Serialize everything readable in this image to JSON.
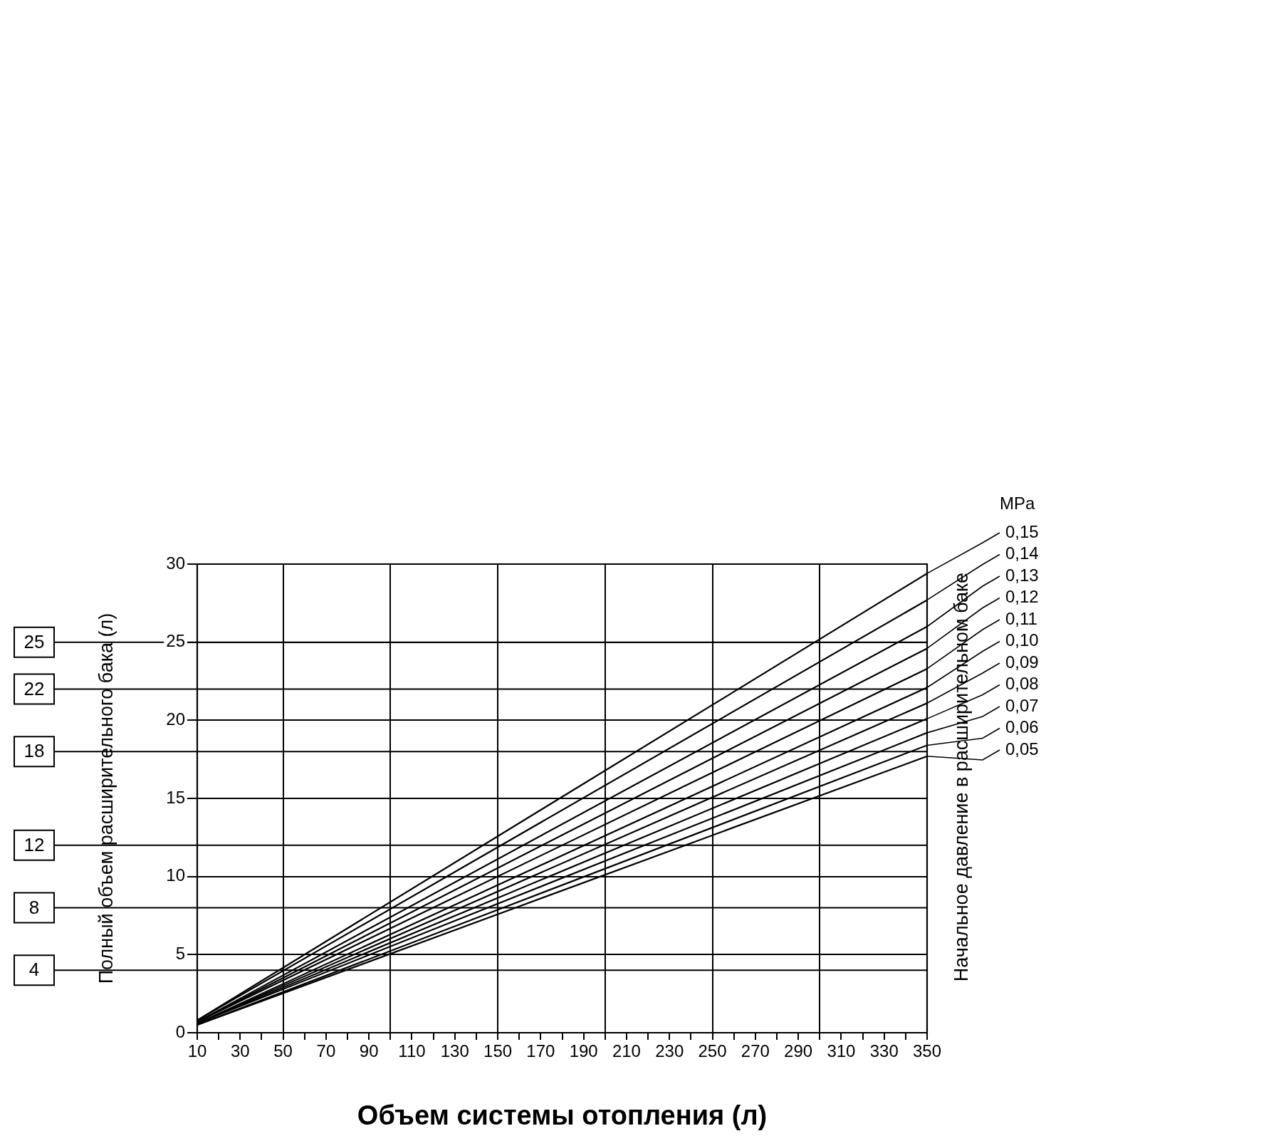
{
  "chart_data": {
    "type": "line",
    "xlabel": "Объем системы отопления (л)",
    "ylabel": "Полный объем расширительного бака (л)",
    "legend_title": "MPa",
    "legend": "right",
    "annotations": [
      "Начальное давление в расширительном баке"
    ],
    "x": [
      10,
      350
    ],
    "series": [
      {
        "name": "0,15",
        "color": "#000000",
        "values": [
          0.8,
          29.4
        ]
      },
      {
        "name": "0,14",
        "color": "#000000",
        "values": [
          0.8,
          27.7
        ]
      },
      {
        "name": "0,13",
        "color": "#000000",
        "values": [
          0.7,
          26.0
        ]
      },
      {
        "name": "0,12",
        "color": "#000000",
        "values": [
          0.7,
          24.6
        ]
      },
      {
        "name": "0,11",
        "color": "#000000",
        "values": [
          0.7,
          23.3
        ]
      },
      {
        "name": "0,10",
        "color": "#000000",
        "values": [
          0.6,
          22.1
        ]
      },
      {
        "name": "0,09",
        "color": "#000000",
        "values": [
          0.6,
          21.1
        ]
      },
      {
        "name": "0,08",
        "color": "#000000",
        "values": [
          0.6,
          20.1
        ]
      },
      {
        "name": "0,07",
        "color": "#000000",
        "values": [
          0.6,
          19.2
        ]
      },
      {
        "name": "0,06",
        "color": "#000000",
        "values": [
          0.5,
          18.4
        ]
      },
      {
        "name": "0,05",
        "color": "#000000",
        "values": [
          0.5,
          17.7
        ]
      }
    ],
    "xlim": [
      10,
      350
    ],
    "xticks": [
      10,
      {
        "value": 20,
        "label": null
      },
      30,
      {
        "value": 40,
        "label": null
      },
      50,
      {
        "value": 60,
        "label": null
      },
      70,
      {
        "value": 80,
        "label": null
      },
      90,
      {
        "value": 100,
        "label": null
      },
      110,
      {
        "value": 120,
        "label": null
      },
      130,
      {
        "value": 140,
        "label": null
      },
      150,
      {
        "value": 160,
        "label": null
      },
      170,
      {
        "value": 180,
        "label": null
      },
      190,
      {
        "value": 200,
        "label": null
      },
      210,
      {
        "value": 220,
        "label": null
      },
      230,
      {
        "value": 240,
        "label": null
      },
      250,
      {
        "value": 260,
        "label": null
      },
      270,
      {
        "value": 280,
        "label": null
      },
      290,
      {
        "value": 300,
        "label": null
      },
      310,
      {
        "value": 320,
        "label": null
      },
      330,
      {
        "value": 340,
        "label": null
      },
      350
    ],
    "ylim": [
      0,
      30
    ],
    "yticks": [
      0,
      5,
      10,
      15,
      20,
      25,
      30
    ],
    "ref_lines": [
      {
        "axis": "y",
        "value": 25,
        "label": "25",
        "color": "#000000"
      },
      {
        "axis": "y",
        "value": 22,
        "label": "22",
        "color": "#000000"
      },
      {
        "axis": "y",
        "value": 18,
        "label": "18",
        "color": "#000000"
      },
      {
        "axis": "y",
        "value": 12,
        "label": "12",
        "color": "#000000"
      },
      {
        "axis": "y",
        "value": 8,
        "label": "8",
        "color": "#000000"
      },
      {
        "axis": "y",
        "value": 4,
        "label": "4",
        "color": "#000000"
      }
    ],
    "grid": true,
    "marker": "none",
    "line_style": "solid"
  }
}
